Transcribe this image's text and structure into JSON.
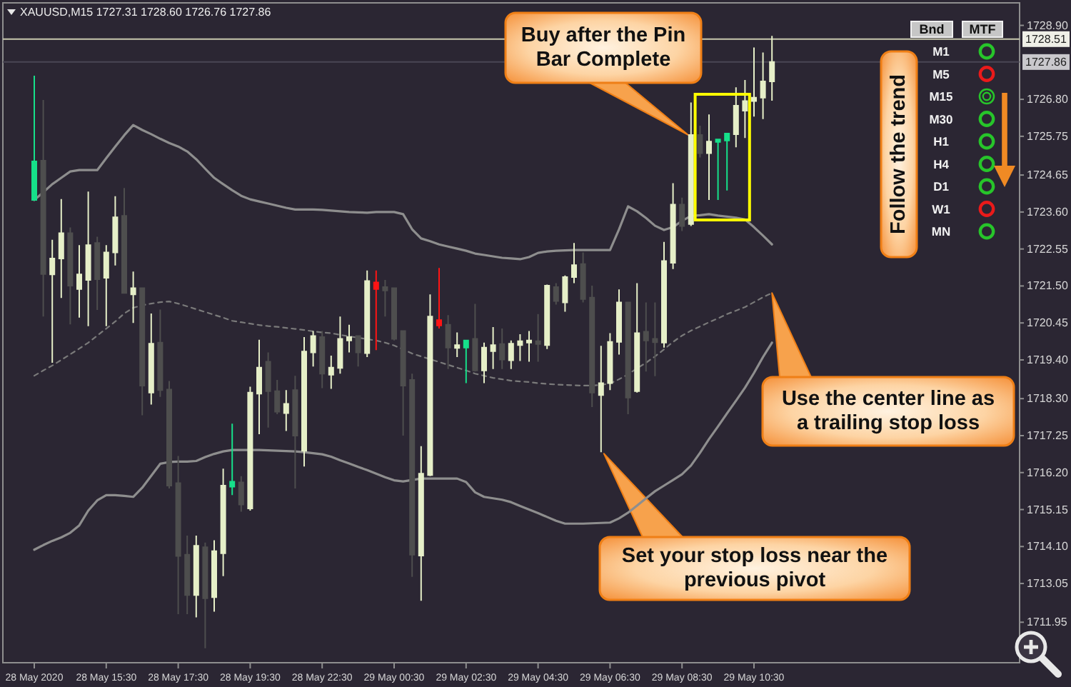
{
  "chart_data": {
    "type": "candlestick",
    "title": "XAUUSD,M15 1727.31 1728.60 1726.76 1727.86",
    "categories": [
      "28 May 2020",
      null,
      null,
      null,
      null,
      null,
      null,
      null,
      "28 May 15:30",
      null,
      null,
      null,
      null,
      null,
      null,
      null,
      "28 May 17:30",
      null,
      null,
      null,
      null,
      null,
      null,
      null,
      "28 May 19:30",
      null,
      null,
      null,
      null,
      null,
      null,
      null,
      "28 May 22:30",
      null,
      null,
      null,
      null,
      null,
      null,
      null,
      "29 May 00:30",
      null,
      null,
      null,
      null,
      null,
      null,
      null,
      "29 May 02:30",
      null,
      null,
      null,
      null,
      null,
      null,
      null,
      "29 May 04:30",
      null,
      null,
      null,
      null,
      null,
      null,
      null,
      "29 May 06:30",
      null,
      null,
      null,
      null,
      null,
      null,
      null,
      "29 May 08:30",
      null,
      null,
      null,
      null,
      null,
      null,
      null,
      "29 May 10:30",
      null,
      null
    ],
    "ohlc": [
      [
        1723.94,
        1727.47,
        1723.94,
        1725.04
      ],
      [
        1725.06,
        1726.78,
        1720.63,
        1721.84
      ],
      [
        1721.83,
        1722.81,
        1719.32,
        1722.28
      ],
      [
        1722.28,
        1723.97,
        1721.16,
        1723.0
      ],
      [
        1723.0,
        1723.16,
        1720.41,
        1721.51
      ],
      [
        1721.41,
        1722.66,
        1720.6,
        1721.83
      ],
      [
        1721.67,
        1724.18,
        1720.36,
        1722.66
      ],
      [
        1722.72,
        1722.9,
        1720.82,
        1721.69
      ],
      [
        1721.73,
        1722.66,
        1720.36,
        1722.45
      ],
      [
        1722.45,
        1724.05,
        1722.08,
        1723.45
      ],
      [
        1723.49,
        1724.28,
        1721.28,
        1721.3
      ],
      [
        1721.26,
        1721.91,
        1720.45,
        1721.44
      ],
      [
        1721.44,
        1721.44,
        1717.83,
        1718.67
      ],
      [
        1718.47,
        1720.72,
        1718.13,
        1719.86
      ],
      [
        1719.89,
        1720.83,
        1718.35,
        1718.54
      ],
      [
        1718.56,
        1718.8,
        1715.75,
        1715.83
      ],
      [
        1715.9,
        1716.67,
        1712.18,
        1713.83
      ],
      [
        1713.87,
        1714.41,
        1712.18,
        1712.72
      ],
      [
        1712.72,
        1714.41,
        1712.09,
        1714.12
      ],
      [
        1714.08,
        1714.21,
        1711.21,
        1712.63
      ],
      [
        1712.66,
        1714.28,
        1712.25,
        1713.97
      ],
      [
        1713.91,
        1716.31,
        1713.26,
        1715.83
      ],
      [
        1715.8,
        1717.59,
        1715.56,
        1715.94
      ],
      [
        1715.92,
        1716.1,
        1715.09,
        1715.29
      ],
      [
        1715.18,
        1718.64,
        1715.12,
        1718.47
      ],
      [
        1718.44,
        1719.97,
        1717.29,
        1719.18
      ],
      [
        1719.35,
        1719.61,
        1717.48,
        1718.51
      ],
      [
        1718.51,
        1718.83,
        1717.86,
        1717.93
      ],
      [
        1717.89,
        1718.54,
        1717.38,
        1718.15
      ],
      [
        1718.54,
        1718.95,
        1715.75,
        1717.25
      ],
      [
        1716.82,
        1720.05,
        1716.37,
        1719.64
      ],
      [
        1719.61,
        1720.22,
        1719.21,
        1720.08
      ],
      [
        1720.05,
        1720.22,
        1718.6,
        1719.01
      ],
      [
        1718.98,
        1719.52,
        1718.58,
        1719.18
      ],
      [
        1719.17,
        1720.63,
        1719.01,
        1720.0
      ],
      [
        1719.95,
        1720.4,
        1719.61,
        1720.05
      ],
      [
        1720.08,
        1720.09,
        1719.21,
        1719.61
      ],
      [
        1719.59,
        1721.94,
        1719.48,
        1721.64
      ],
      [
        1721.6,
        1721.94,
        1719.68,
        1721.41
      ],
      [
        1721.47,
        1721.67,
        1720.63,
        1721.37
      ],
      [
        1721.44,
        1721.44,
        1719.95,
        1720.0
      ],
      [
        1720.22,
        1720.22,
        1717.25,
        1718.67
      ],
      [
        1718.83,
        1719.01,
        1713.24,
        1713.87
      ],
      [
        1713.84,
        1716.95,
        1712.56,
        1716.17
      ],
      [
        1716.13,
        1721.26,
        1716.1,
        1720.63
      ],
      [
        1720.53,
        1722.01,
        1720.29,
        1720.38
      ],
      [
        1720.4,
        1720.67,
        1719.14,
        1719.75
      ],
      [
        1719.74,
        1720.18,
        1719.48,
        1719.82
      ],
      [
        1719.75,
        1719.95,
        1718.74,
        1719.95
      ],
      [
        1720.0,
        1720.99,
        1719.07,
        1719.1
      ],
      [
        1719.1,
        1719.89,
        1718.74,
        1719.75
      ],
      [
        1719.65,
        1720.33,
        1719.14,
        1719.82
      ],
      [
        1719.85,
        1720.29,
        1719.14,
        1719.41
      ],
      [
        1719.39,
        1719.95,
        1719.14,
        1719.86
      ],
      [
        1719.82,
        1720.13,
        1719.37,
        1719.93
      ],
      [
        1719.89,
        1720.22,
        1719.35,
        1719.95
      ],
      [
        1719.93,
        1720.7,
        1719.35,
        1719.85
      ],
      [
        1719.82,
        1721.54,
        1719.71,
        1721.51
      ],
      [
        1721.47,
        1721.58,
        1720.97,
        1721.07
      ],
      [
        1721.03,
        1721.8,
        1720.77,
        1721.75
      ],
      [
        1721.75,
        1722.72,
        1721.58,
        1722.09
      ],
      [
        1722.12,
        1722.45,
        1721.03,
        1721.13
      ],
      [
        1721.17,
        1721.51,
        1718.06,
        1718.47
      ],
      [
        1718.4,
        1719.8,
        1716.78,
        1718.74
      ],
      [
        1718.74,
        1720.16,
        1718.54,
        1719.91
      ],
      [
        1719.91,
        1721.4,
        1719.55,
        1721.03
      ],
      [
        1721.03,
        1721.03,
        1717.86,
        1718.33
      ],
      [
        1718.51,
        1721.58,
        1718.47,
        1720.16
      ],
      [
        1720.2,
        1721.03,
        1719.07,
        1719.95
      ],
      [
        1720.0,
        1721.03,
        1718.94,
        1719.9
      ],
      [
        1719.89,
        1722.75,
        1719.75,
        1722.21
      ],
      [
        1722.16,
        1724.42,
        1721.98,
        1723.81
      ],
      [
        1723.81,
        1724.01,
        1723.06,
        1723.2
      ],
      [
        1723.26,
        1726.71,
        1723.2,
        1725.79
      ],
      [
        1725.79,
        1726.05,
        1725.15,
        1725.27
      ],
      [
        1725.27,
        1726.37,
        1723.94,
        1725.6
      ],
      [
        1725.59,
        1725.66,
        1723.94,
        1725.66
      ],
      [
        1725.63,
        1725.83,
        1724.21,
        1725.83
      ],
      [
        1725.81,
        1727.14,
        1725.44,
        1726.62
      ],
      [
        1726.48,
        1727.35,
        1725.7,
        1726.75
      ],
      [
        1726.75,
        1728.27,
        1726.31,
        1726.85
      ],
      [
        1726.85,
        1728.13,
        1726.24,
        1727.31
      ],
      [
        1727.31,
        1728.6,
        1726.76,
        1727.86
      ]
    ],
    "colors": [
      "#16e08a",
      "#4e4e4e",
      "#e6efc8",
      "#e6efc8",
      "#4e4e4e",
      "#e6efc8",
      "#e6efc8",
      "#4e4e4e",
      "#e6efc8",
      "#e6efc8",
      "#4e4e4e",
      "#e6efc8",
      "#4e4e4e",
      "#e6efc8",
      "#4e4e4e",
      "#4e4e4e",
      "#4e4e4e",
      "#4e4e4e",
      "#e6efc8",
      "#4e4e4e",
      "#e6efc8",
      "#e6efc8",
      "#16e08a",
      "#4e4e4e",
      "#e6efc8",
      "#e6efc8",
      "#4e4e4e",
      "#4e4e4e",
      "#e6efc8",
      "#4e4e4e",
      "#e6efc8",
      "#e6efc8",
      "#4e4e4e",
      "#e6efc8",
      "#e6efc8",
      "#e6efc8",
      "#4e4e4e",
      "#e6efc8",
      "#ff1414",
      "#4e4e4e",
      "#4e4e4e",
      "#4e4e4e",
      "#4e4e4e",
      "#e6efc8",
      "#e6efc8",
      "#ff1414",
      "#4e4e4e",
      "#e6efc8",
      "#16e08a",
      "#4e4e4e",
      "#e6efc8",
      "#e6efc8",
      "#4e4e4e",
      "#e6efc8",
      "#e6efc8",
      "#e6efc8",
      "#4e4e4e",
      "#e6efc8",
      "#4e4e4e",
      "#e6efc8",
      "#e6efc8",
      "#4e4e4e",
      "#4e4e4e",
      "#e6efc8",
      "#e6efc8",
      "#e6efc8",
      "#4e4e4e",
      "#e6efc8",
      "#4e4e4e",
      "#4e4e4e",
      "#e6efc8",
      "#e6efc8",
      "#4e4e4e",
      "#e6efc8",
      "#4e4e4e",
      "#e6efc8",
      "#16e08a",
      "#16e08a",
      "#e6efc8",
      "#e6efc8",
      "#e6efc8",
      "#e6efc8",
      "#e6efc8"
    ],
    "series": [
      {
        "type": "line",
        "color": "#8e8e8e",
        "values": [
          1723.94,
          1724.16,
          1724.39,
          1724.57,
          1724.75,
          1724.79,
          1724.79,
          1724.79,
          1725.13,
          1725.46,
          1725.78,
          1726.07,
          1725.93,
          1725.81,
          1725.68,
          1725.56,
          1725.46,
          1725.32,
          1725.1,
          1724.83,
          1724.57,
          1724.39,
          1724.22,
          1724.06,
          1723.96,
          1723.9,
          1723.84,
          1723.78,
          1723.72,
          1723.67,
          1723.67,
          1723.67,
          1723.66,
          1723.64,
          1723.62,
          1723.6,
          1723.59,
          1723.58,
          1723.6,
          1723.6,
          1723.6,
          1723.54,
          1723.11,
          1722.85,
          1722.77,
          1722.68,
          1722.62,
          1722.56,
          1722.5,
          1722.42,
          1722.38,
          1722.34,
          1722.3,
          1722.28,
          1722.26,
          1722.32,
          1722.44,
          1722.48,
          1722.5,
          1722.51,
          1722.52,
          1722.52,
          1722.52,
          1722.52,
          1722.52,
          1723.11,
          1723.76,
          1723.62,
          1723.43,
          1723.21,
          1723.09,
          1723.17,
          1723.35,
          1723.49,
          1723.51,
          1723.54,
          1723.5,
          1723.47,
          1723.44,
          1723.39,
          1723.17,
          1722.93,
          1722.68
        ]
      },
      {
        "type": "line",
        "color": "#7a7a7a",
        "line_style": "dashed",
        "values": [
          1718.95,
          1719.1,
          1719.24,
          1719.4,
          1719.56,
          1719.72,
          1719.89,
          1720.09,
          1720.29,
          1720.49,
          1720.72,
          1720.88,
          1720.95,
          1721.0,
          1721.04,
          1721.06,
          1721.0,
          1720.92,
          1720.84,
          1720.76,
          1720.68,
          1720.6,
          1720.51,
          1720.47,
          1720.43,
          1720.39,
          1720.36,
          1720.34,
          1720.31,
          1720.28,
          1720.25,
          1720.21,
          1720.18,
          1720.16,
          1720.11,
          1720.07,
          1720.03,
          1719.99,
          1719.95,
          1719.89,
          1719.81,
          1719.7,
          1719.58,
          1719.5,
          1719.42,
          1719.34,
          1719.26,
          1719.18,
          1719.1,
          1719.01,
          1718.95,
          1718.89,
          1718.85,
          1718.81,
          1718.79,
          1718.77,
          1718.74,
          1718.72,
          1718.7,
          1718.69,
          1718.68,
          1718.67,
          1718.67,
          1718.69,
          1718.73,
          1718.85,
          1718.99,
          1719.16,
          1719.32,
          1719.5,
          1719.7,
          1719.91,
          1720.09,
          1720.23,
          1720.35,
          1720.47,
          1720.58,
          1720.7,
          1720.8,
          1720.9,
          1721.04,
          1721.18,
          1721.3
        ]
      },
      {
        "type": "line",
        "color": "#8e8e8e",
        "values": [
          1714.01,
          1714.14,
          1714.26,
          1714.36,
          1714.49,
          1714.7,
          1715.12,
          1715.41,
          1715.56,
          1715.56,
          1715.54,
          1715.51,
          1715.77,
          1716.11,
          1716.45,
          1716.5,
          1716.51,
          1716.51,
          1716.53,
          1716.64,
          1716.73,
          1716.8,
          1716.84,
          1716.84,
          1716.84,
          1716.84,
          1716.83,
          1716.82,
          1716.81,
          1716.8,
          1716.78,
          1716.75,
          1716.72,
          1716.65,
          1716.55,
          1716.46,
          1716.36,
          1716.27,
          1716.17,
          1716.07,
          1715.98,
          1715.95,
          1715.99,
          1716.03,
          1716.03,
          1716.03,
          1716.03,
          1716.03,
          1715.93,
          1715.64,
          1715.51,
          1715.47,
          1715.43,
          1715.36,
          1715.25,
          1715.15,
          1715.05,
          1714.94,
          1714.83,
          1714.75,
          1714.75,
          1714.75,
          1714.76,
          1714.77,
          1714.78,
          1714.9,
          1715.06,
          1715.26,
          1715.47,
          1715.67,
          1715.83,
          1715.99,
          1716.15,
          1716.4,
          1716.76,
          1717.15,
          1717.51,
          1717.88,
          1718.24,
          1718.61,
          1719.03,
          1719.48,
          1719.89
        ]
      }
    ],
    "ylim": [
      1710.8,
      1729.54
    ],
    "yticks": [
      {
        "value": 1728.9,
        "label": "1728.90"
      },
      {
        "value": 1726.8,
        "label": "1726.80"
      },
      1725.75,
      1724.65,
      {
        "value": 1723.6,
        "label": "1723.60"
      },
      1722.55,
      {
        "value": 1721.5,
        "label": "1721.50"
      },
      1720.45,
      {
        "value": 1719.4,
        "label": "1719.40"
      },
      {
        "value": 1718.3,
        "label": "1718.30"
      },
      1717.25,
      {
        "value": 1716.2,
        "label": "1716.20"
      },
      1715.15,
      {
        "value": 1714.1,
        "label": "1714.10"
      },
      1713.05,
      1711.95
    ],
    "ref_lines": [
      {
        "axis": "y",
        "value": 1728.51,
        "label": "1728.51",
        "color": "#c8c8ae"
      },
      {
        "axis": "y",
        "value": 1727.86,
        "label": "1727.86",
        "color": "#4a4654"
      }
    ],
    "annotations": [
      "Buy after the Pin Bar Complete",
      "Follow the trend",
      "Use the center line as a trailing stop loss",
      "Set your stop loss near the previous pivot",
      "Bnd",
      "MTF",
      "M1",
      "M5",
      "M15",
      "M30",
      "H1",
      "H4",
      "D1",
      "W1",
      "MN"
    ]
  }
}
